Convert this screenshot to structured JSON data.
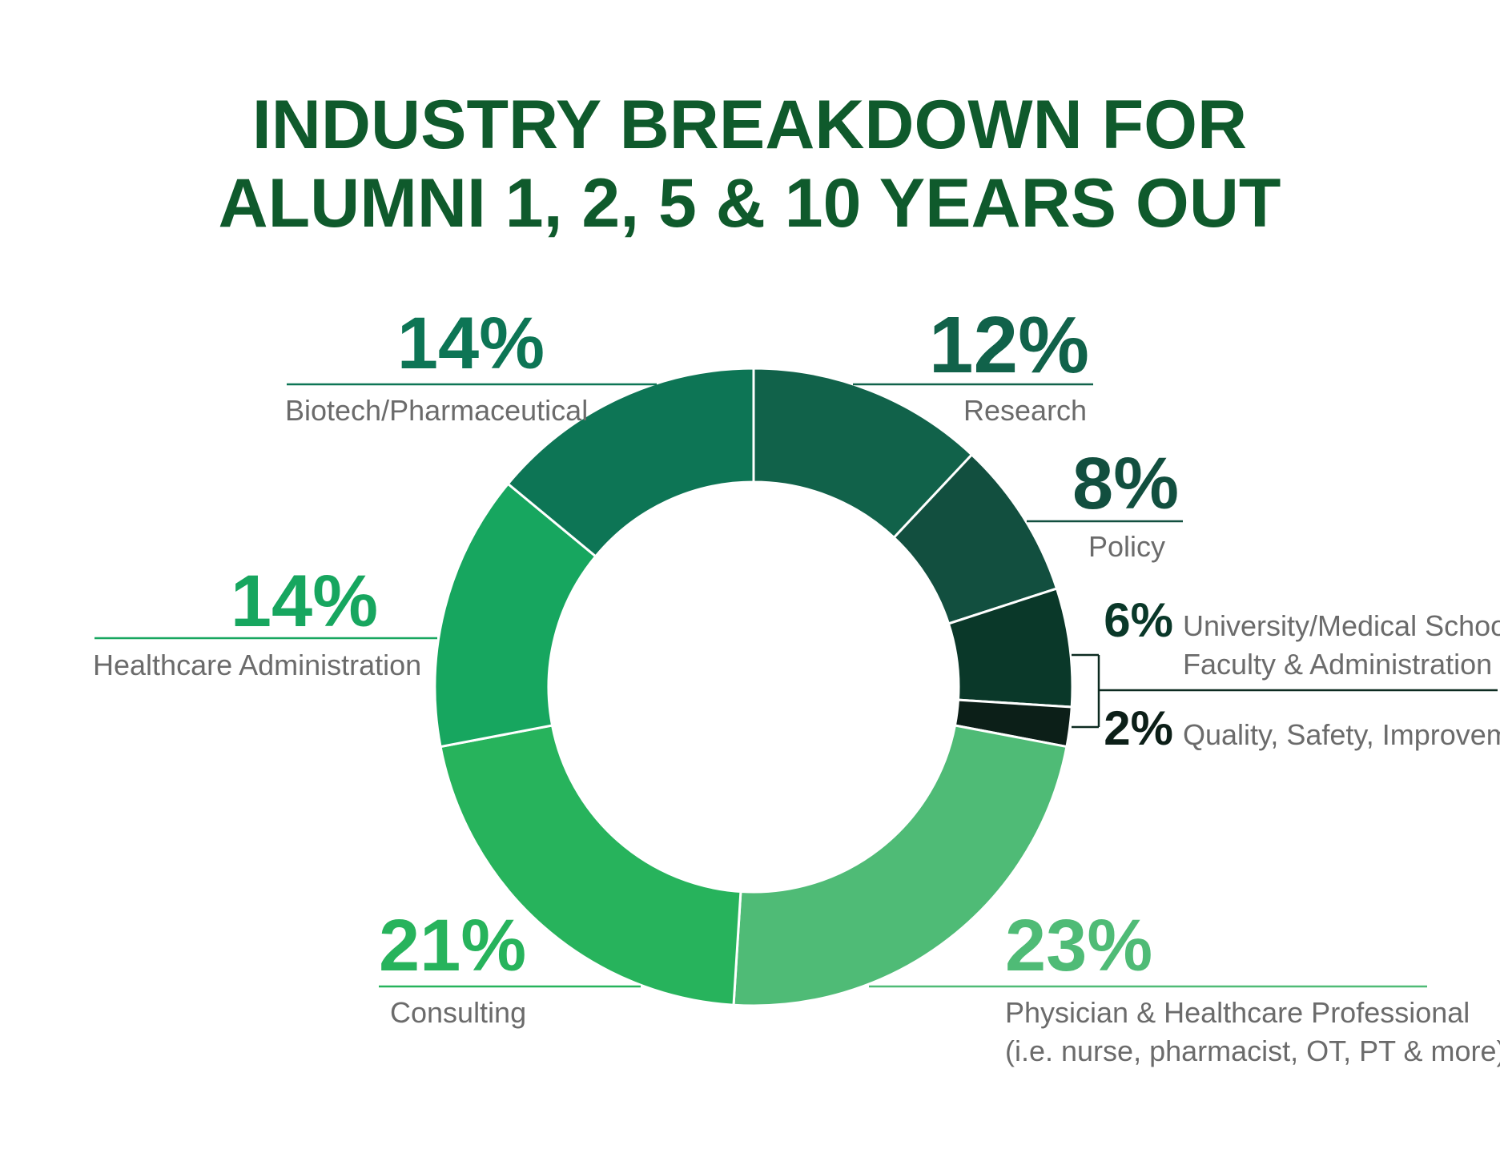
{
  "chart_data": {
    "type": "pie",
    "variant": "donut",
    "title": [
      "INDUSTRY BREAKDOWN FOR",
      "ALUMNI 1, 2, 5 & 10 YEARS OUT"
    ],
    "slices": [
      {
        "label": "Research",
        "value": 12,
        "display": "12%",
        "color": "#11624a"
      },
      {
        "label": "Policy",
        "value": 8,
        "display": "8%",
        "color": "#124f3f"
      },
      {
        "label": "University/Medical Schools, Faculty & Administration",
        "label_lines": [
          "University/Medical Schools,",
          "Faculty & Administration"
        ],
        "value": 6,
        "display": "6%",
        "color": "#0a3829"
      },
      {
        "label": "Quality, Safety, Improvement",
        "value": 2,
        "display": "2%",
        "color": "#0c1f18"
      },
      {
        "label": "Physician & Healthcare Professional (i.e. nurse, pharmacist, OT, PT & more)",
        "label_lines": [
          "Physician & Healthcare Professional",
          "(i.e. nurse, pharmacist, OT, PT & more)"
        ],
        "value": 23,
        "display": "23%",
        "color": "#4fbb76"
      },
      {
        "label": "Consulting",
        "value": 21,
        "display": "21%",
        "color": "#27b35c"
      },
      {
        "label": "Healthcare Administration",
        "value": 14,
        "display": "14%",
        "color": "#17a65f"
      },
      {
        "label": "Biotech/Pharmaceutical",
        "value": 14,
        "display": "14%",
        "color": "#0d7555"
      }
    ]
  }
}
